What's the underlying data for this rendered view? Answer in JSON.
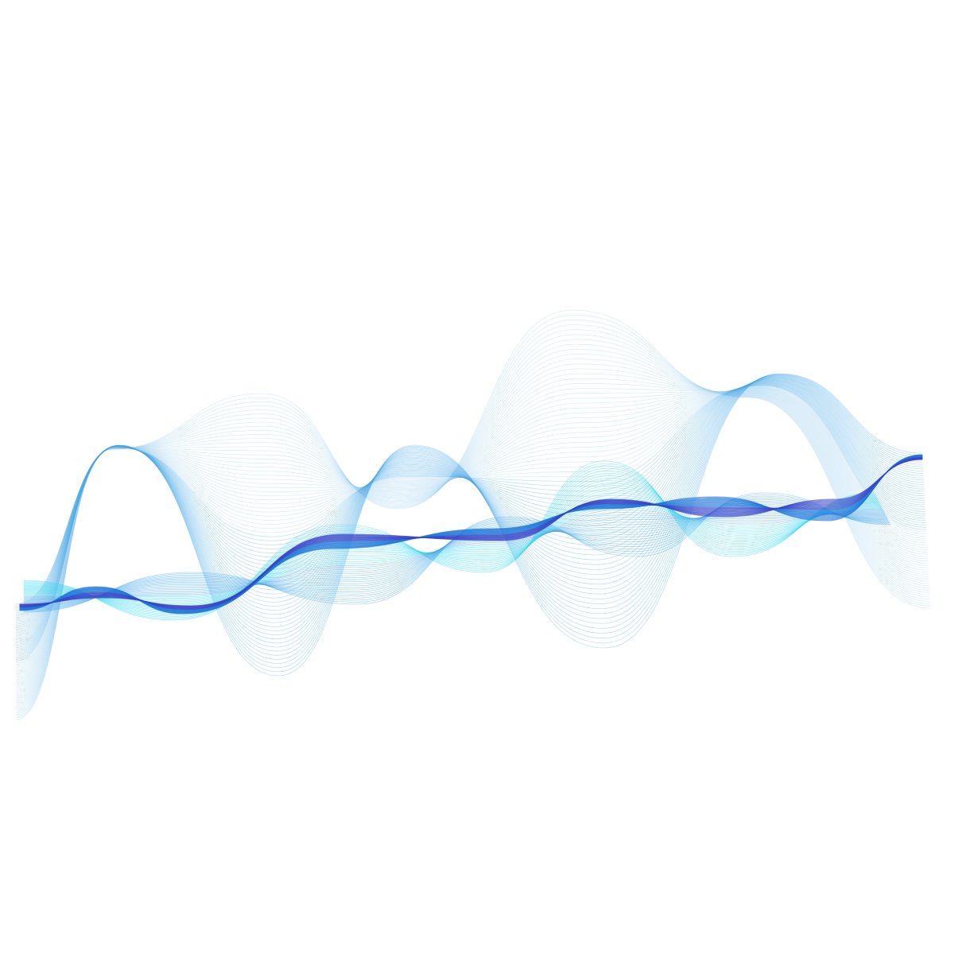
{
  "artwork": {
    "description": "",
    "background_color": "#ffffff",
    "palette": {
      "light_blue": "#9ccfee",
      "sky_blue": "#4aa8e6",
      "cyan": "#38d6ee",
      "azure": "#1f78d8",
      "indigo": "#3a46c8",
      "deep_blue": "#1a5fd0"
    }
  }
}
